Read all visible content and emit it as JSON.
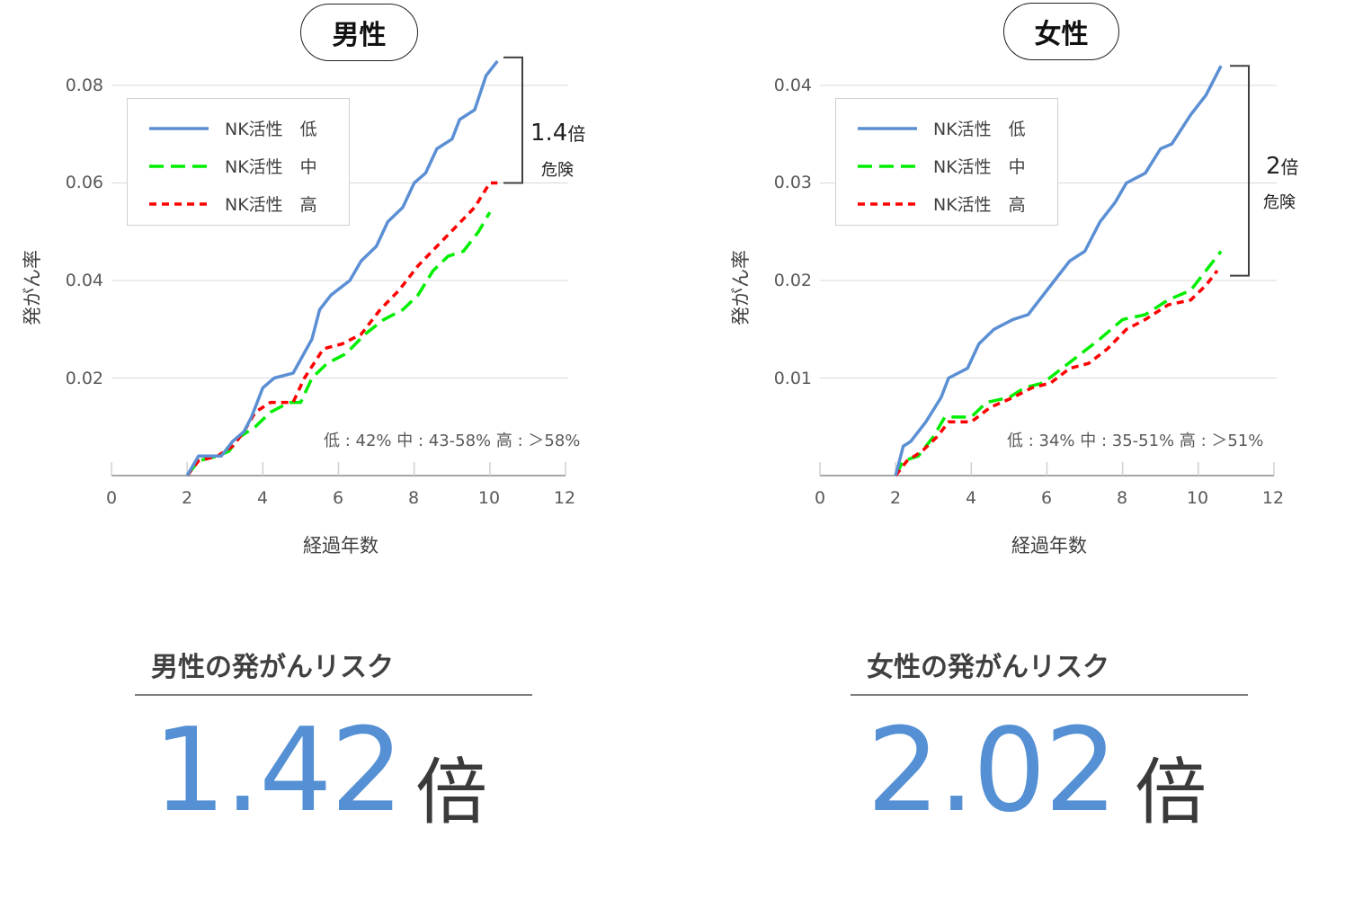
{
  "chart_data": [
    {
      "type": "line",
      "title": "男性",
      "xlabel": "経過年数",
      "ylabel": "発がん率",
      "xlim": [
        0,
        12
      ],
      "ylim": [
        0,
        0.08
      ],
      "x_ticks": [
        "0",
        "2",
        "4",
        "6",
        "8",
        "10",
        "12"
      ],
      "y_ticks": [
        "0.02",
        "0.04",
        "0.06",
        "0.08"
      ],
      "grid": true,
      "legend_position": "upper-left",
      "series": [
        {
          "name": "NK活性　低",
          "color": "#5b8fd4",
          "style": "solid",
          "points": [
            [
              2,
              0
            ],
            [
              2.3,
              0.004
            ],
            [
              2.9,
              0.004
            ],
            [
              3.2,
              0.007
            ],
            [
              3.5,
              0.009
            ],
            [
              3.7,
              0.012
            ],
            [
              4.0,
              0.018
            ],
            [
              4.3,
              0.02
            ],
            [
              4.8,
              0.021
            ],
            [
              5.3,
              0.028
            ],
            [
              5.5,
              0.034
            ],
            [
              5.8,
              0.037
            ],
            [
              6.3,
              0.04
            ],
            [
              6.6,
              0.044
            ],
            [
              7.0,
              0.047
            ],
            [
              7.3,
              0.052
            ],
            [
              7.7,
              0.055
            ],
            [
              8.0,
              0.06
            ],
            [
              8.3,
              0.062
            ],
            [
              8.6,
              0.067
            ],
            [
              9.0,
              0.069
            ],
            [
              9.2,
              0.073
            ],
            [
              9.6,
              0.075
            ],
            [
              9.9,
              0.082
            ],
            [
              10.2,
              0.085
            ]
          ]
        },
        {
          "name": "NK活性　中",
          "color": "#00ee00",
          "style": "long-dash",
          "points": [
            [
              2,
              0
            ],
            [
              2.3,
              0.003
            ],
            [
              2.8,
              0.004
            ],
            [
              3.1,
              0.005
            ],
            [
              3.4,
              0.008
            ],
            [
              3.8,
              0.01
            ],
            [
              4.2,
              0.013
            ],
            [
              4.7,
              0.015
            ],
            [
              5.0,
              0.015
            ],
            [
              5.3,
              0.02
            ],
            [
              5.7,
              0.023
            ],
            [
              6.2,
              0.025
            ],
            [
              6.7,
              0.029
            ],
            [
              7.2,
              0.032
            ],
            [
              7.7,
              0.034
            ],
            [
              8.1,
              0.037
            ],
            [
              8.5,
              0.042
            ],
            [
              8.9,
              0.045
            ],
            [
              9.3,
              0.046
            ],
            [
              9.7,
              0.05
            ],
            [
              10.0,
              0.054
            ]
          ]
        },
        {
          "name": "NK活性　高",
          "color": "#ff0000",
          "style": "short-dash",
          "points": [
            [
              2,
              0
            ],
            [
              2.3,
              0.003
            ],
            [
              2.8,
              0.004
            ],
            [
              3.2,
              0.006
            ],
            [
              3.5,
              0.009
            ],
            [
              3.8,
              0.013
            ],
            [
              4.2,
              0.015
            ],
            [
              4.8,
              0.015
            ],
            [
              5.1,
              0.02
            ],
            [
              5.6,
              0.026
            ],
            [
              6.1,
              0.027
            ],
            [
              6.6,
              0.029
            ],
            [
              7.1,
              0.034
            ],
            [
              7.6,
              0.038
            ],
            [
              8.1,
              0.043
            ],
            [
              8.6,
              0.047
            ],
            [
              9.1,
              0.051
            ],
            [
              9.6,
              0.055
            ],
            [
              10.0,
              0.06
            ],
            [
              10.2,
              0.06
            ]
          ]
        }
      ],
      "annotations": [
        {
          "text": "1.4倍 危険",
          "type": "bracket",
          "from": 0.06,
          "to": 0.085
        },
        {
          "text": "低 : 42% 中 : 43-58% 高 : ＞58%"
        }
      ]
    },
    {
      "type": "line",
      "title": "女性",
      "xlabel": "経過年数",
      "ylabel": "発がん率",
      "xlim": [
        0,
        12
      ],
      "ylim": [
        0,
        0.04
      ],
      "x_ticks": [
        "0",
        "2",
        "4",
        "6",
        "8",
        "10",
        "12"
      ],
      "y_ticks": [
        "0.01",
        "0.02",
        "0.03",
        "0.04"
      ],
      "grid": true,
      "legend_position": "upper-left",
      "series": [
        {
          "name": "NK活性　低",
          "color": "#5b8fd4",
          "style": "solid",
          "points": [
            [
              2,
              0
            ],
            [
              2.2,
              0.003
            ],
            [
              2.4,
              0.0035
            ],
            [
              2.8,
              0.0055
            ],
            [
              3.2,
              0.008
            ],
            [
              3.4,
              0.01
            ],
            [
              3.9,
              0.011
            ],
            [
              4.2,
              0.0135
            ],
            [
              4.6,
              0.015
            ],
            [
              5.1,
              0.016
            ],
            [
              5.5,
              0.0165
            ],
            [
              5.8,
              0.018
            ],
            [
              6.2,
              0.02
            ],
            [
              6.6,
              0.022
            ],
            [
              7.0,
              0.023
            ],
            [
              7.4,
              0.026
            ],
            [
              7.8,
              0.028
            ],
            [
              8.1,
              0.03
            ],
            [
              8.6,
              0.031
            ],
            [
              9.0,
              0.0335
            ],
            [
              9.3,
              0.034
            ],
            [
              9.8,
              0.037
            ],
            [
              10.2,
              0.039
            ],
            [
              10.6,
              0.042
            ]
          ]
        },
        {
          "name": "NK活性　中",
          "color": "#00ee00",
          "style": "long-dash",
          "points": [
            [
              2,
              0
            ],
            [
              2.2,
              0.0015
            ],
            [
              2.6,
              0.002
            ],
            [
              3.0,
              0.004
            ],
            [
              3.3,
              0.006
            ],
            [
              4.0,
              0.006
            ],
            [
              4.4,
              0.0075
            ],
            [
              5.0,
              0.008
            ],
            [
              5.4,
              0.009
            ],
            [
              5.9,
              0.0095
            ],
            [
              6.4,
              0.011
            ],
            [
              6.9,
              0.0125
            ],
            [
              7.4,
              0.014
            ],
            [
              8.0,
              0.016
            ],
            [
              8.6,
              0.0165
            ],
            [
              9.2,
              0.018
            ],
            [
              9.8,
              0.019
            ],
            [
              10.2,
              0.021
            ],
            [
              10.6,
              0.023
            ]
          ]
        },
        {
          "name": "NK活性　高",
          "color": "#ff0000",
          "style": "short-dash",
          "points": [
            [
              2,
              0
            ],
            [
              2.3,
              0.0015
            ],
            [
              2.7,
              0.0025
            ],
            [
              3.1,
              0.004
            ],
            [
              3.4,
              0.0055
            ],
            [
              4.0,
              0.0055
            ],
            [
              4.5,
              0.007
            ],
            [
              5.1,
              0.008
            ],
            [
              5.6,
              0.009
            ],
            [
              6.1,
              0.0095
            ],
            [
              6.6,
              0.011
            ],
            [
              7.1,
              0.0115
            ],
            [
              7.6,
              0.013
            ],
            [
              8.1,
              0.015
            ],
            [
              8.6,
              0.016
            ],
            [
              9.2,
              0.0175
            ],
            [
              9.8,
              0.018
            ],
            [
              10.2,
              0.0195
            ],
            [
              10.5,
              0.021
            ]
          ]
        }
      ],
      "annotations": [
        {
          "text": "2倍 危険",
          "type": "bracket",
          "from": 0.0205,
          "to": 0.042
        },
        {
          "text": "低 : 34% 中 : 35-51% 高 : ＞51%"
        }
      ]
    }
  ],
  "charts": {
    "male": {
      "title": "男性",
      "y_ticks": [
        "0.08",
        "0.06",
        "0.04",
        "0.02"
      ],
      "x_ticks": [
        "0",
        "2",
        "4",
        "6",
        "8",
        "10",
        "12"
      ],
      "xlabel": "経過年数",
      "ylabel": "発がん率",
      "legend": [
        "NK活性　低",
        "NK活性　中",
        "NK活性　高"
      ],
      "ratio_num": "1.4",
      "ratio_unit": "倍",
      "ratio_sub": "危険",
      "note": "低 : 42% 中 : 43-58% 高 : ＞58%"
    },
    "female": {
      "title": "女性",
      "y_ticks": [
        "0.04",
        "0.03",
        "0.02",
        "0.01"
      ],
      "x_ticks": [
        "0",
        "2",
        "4",
        "6",
        "8",
        "10",
        "12"
      ],
      "xlabel": "経過年数",
      "ylabel": "発がん率",
      "legend": [
        "NK活性　低",
        "NK活性　中",
        "NK活性　高"
      ],
      "ratio_num": "2",
      "ratio_unit": "倍",
      "ratio_sub": "危険",
      "note": "低 : 34% 中 : 35-51% 高 : ＞51%"
    }
  },
  "summary": {
    "male": {
      "heading": "男性の発がんリスク",
      "value": "1.42",
      "unit": "倍"
    },
    "female": {
      "heading": "女性の発がんリスク",
      "value": "2.02",
      "unit": "倍"
    }
  },
  "colors": {
    "low": "#5b8fd4",
    "mid": "#00ee00",
    "high": "#ff0000",
    "accent": "#5590d4"
  }
}
